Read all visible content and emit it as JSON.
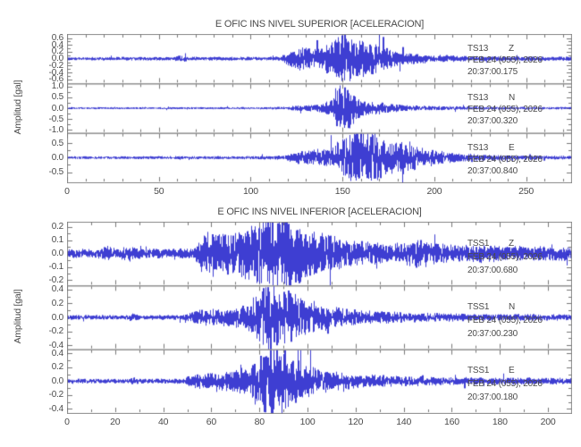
{
  "colors": {
    "background": "#ffffff",
    "trace": "#2323cc",
    "frame": "#8a8a8a",
    "tick": "#777777",
    "text": "#4a4a4a"
  },
  "chart_data": [
    {
      "type": "line",
      "title": "E OFIC INS NIVEL SUPERIOR [ACELERACION]",
      "ylabel": "Amplitud [gal]",
      "xlabel": "",
      "x_range": [
        0,
        275
      ],
      "xticks": [
        0,
        50,
        100,
        150,
        200,
        250
      ],
      "x_minor_step": 10,
      "grid": false,
      "traces": [
        {
          "station": "TS13",
          "component": "Z",
          "date": "FEB 24 (055), 2026",
          "time": "20:37:00.175",
          "yticks": [
            0.6,
            0.4,
            0.2,
            0.0,
            -0.2,
            -0.4,
            -0.6
          ],
          "ylim": [
            -0.72,
            0.72
          ],
          "dominant_freq_hz": 1.5,
          "envelope": [
            [
              0,
              0.04
            ],
            [
              40,
              0.045
            ],
            [
              58,
              0.045
            ],
            [
              62,
              0.1
            ],
            [
              66,
              0.05
            ],
            [
              90,
              0.045
            ],
            [
              116,
              0.05
            ],
            [
              122,
              0.2
            ],
            [
              127,
              0.3
            ],
            [
              133,
              0.25
            ],
            [
              139,
              0.3
            ],
            [
              145,
              0.42
            ],
            [
              149,
              0.6
            ],
            [
              152,
              0.65
            ],
            [
              156,
              0.45
            ],
            [
              161,
              0.47
            ],
            [
              166,
              0.4
            ],
            [
              172,
              0.3
            ],
            [
              178,
              0.22
            ],
            [
              186,
              0.15
            ],
            [
              196,
              0.11
            ],
            [
              210,
              0.08
            ],
            [
              230,
              0.06
            ],
            [
              255,
              0.055
            ],
            [
              275,
              0.05
            ]
          ]
        },
        {
          "station": "TS13",
          "component": "N",
          "date": "FEB 24 (055), 2026",
          "time": "20:37:00.320",
          "yticks": [
            1.0,
            0.5,
            0.0,
            -0.5,
            -1.0
          ],
          "ylim": [
            -1.15,
            1.15
          ],
          "dominant_freq_hz": 1.8,
          "envelope": [
            [
              0,
              0.04
            ],
            [
              60,
              0.04
            ],
            [
              100,
              0.045
            ],
            [
              112,
              0.05
            ],
            [
              118,
              0.06
            ],
            [
              124,
              0.1
            ],
            [
              132,
              0.12
            ],
            [
              138,
              0.16
            ],
            [
              143,
              0.3
            ],
            [
              147,
              0.7
            ],
            [
              150,
              1.05
            ],
            [
              154,
              0.85
            ],
            [
              158,
              0.45
            ],
            [
              163,
              0.28
            ],
            [
              168,
              0.26
            ],
            [
              175,
              0.18
            ],
            [
              183,
              0.13
            ],
            [
              192,
              0.1
            ],
            [
              205,
              0.08
            ],
            [
              225,
              0.06
            ],
            [
              275,
              0.05
            ]
          ]
        },
        {
          "station": "TS13",
          "component": "E",
          "date": "FEB 24 (055), 2026",
          "time": "20:37:00.840",
          "yticks": [
            0.5,
            0.0,
            -0.5
          ],
          "ylim": [
            -0.85,
            0.85
          ],
          "dominant_freq_hz": 1.2,
          "envelope": [
            [
              0,
              0.04
            ],
            [
              60,
              0.045
            ],
            [
              100,
              0.05
            ],
            [
              118,
              0.06
            ],
            [
              123,
              0.14
            ],
            [
              128,
              0.2
            ],
            [
              134,
              0.22
            ],
            [
              140,
              0.25
            ],
            [
              146,
              0.4
            ],
            [
              150,
              0.6
            ],
            [
              154,
              0.75
            ],
            [
              158,
              0.9
            ],
            [
              162,
              0.7
            ],
            [
              166,
              0.8
            ],
            [
              170,
              0.65
            ],
            [
              175,
              0.5
            ],
            [
              180,
              0.45
            ],
            [
              185,
              0.5
            ],
            [
              190,
              0.35
            ],
            [
              196,
              0.28
            ],
            [
              202,
              0.2
            ],
            [
              210,
              0.14
            ],
            [
              220,
              0.1
            ],
            [
              235,
              0.08
            ],
            [
              255,
              0.06
            ],
            [
              275,
              0.055
            ]
          ]
        }
      ]
    },
    {
      "type": "line",
      "title": "E OFIC INS NIVEL INFERIOR [ACELERACION]",
      "ylabel": "Amplitud [gal]",
      "xlabel": "",
      "x_range": [
        0,
        210
      ],
      "xticks": [
        0,
        20,
        40,
        60,
        80,
        100,
        120,
        140,
        160,
        180,
        200
      ],
      "x_minor_step": 10,
      "grid": false,
      "traces": [
        {
          "station": "TSS1",
          "component": "Z",
          "date": "FEB 24 (055), 2026",
          "time": "20:37:00.680",
          "yticks": [
            0.2,
            0.1,
            0.0,
            -0.1,
            -0.2
          ],
          "ylim": [
            -0.24,
            0.24
          ],
          "dominant_freq_hz": 2.2,
          "envelope": [
            [
              0,
              0.03
            ],
            [
              14,
              0.03
            ],
            [
              17,
              0.05
            ],
            [
              20,
              0.032
            ],
            [
              26,
              0.05
            ],
            [
              30,
              0.032
            ],
            [
              45,
              0.03
            ],
            [
              53,
              0.035
            ],
            [
              56,
              0.13
            ],
            [
              60,
              0.15
            ],
            [
              64,
              0.12
            ],
            [
              68,
              0.13
            ],
            [
              72,
              0.15
            ],
            [
              76,
              0.18
            ],
            [
              80,
              0.2
            ],
            [
              84,
              0.22
            ],
            [
              88,
              0.28
            ],
            [
              91,
              0.25
            ],
            [
              94,
              0.2
            ],
            [
              98,
              0.17
            ],
            [
              103,
              0.14
            ],
            [
              108,
              0.12
            ],
            [
              114,
              0.1
            ],
            [
              120,
              0.08
            ],
            [
              128,
              0.07
            ],
            [
              136,
              0.06
            ],
            [
              143,
              0.08
            ],
            [
              147,
              0.1
            ],
            [
              151,
              0.07
            ],
            [
              158,
              0.06
            ],
            [
              165,
              0.055
            ],
            [
              172,
              0.06
            ],
            [
              180,
              0.05
            ],
            [
              190,
              0.05
            ],
            [
              200,
              0.045
            ],
            [
              210,
              0.045
            ]
          ]
        },
        {
          "station": "TSS1",
          "component": "N",
          "date": "FEB 24 (055), 2026",
          "time": "20:37:00.230",
          "yticks": [
            0.4,
            0.2,
            0.0,
            -0.2,
            -0.4
          ],
          "ylim": [
            -0.46,
            0.46
          ],
          "dominant_freq_hz": 2.0,
          "envelope": [
            [
              0,
              0.028
            ],
            [
              24,
              0.03
            ],
            [
              27,
              0.05
            ],
            [
              30,
              0.03
            ],
            [
              48,
              0.03
            ],
            [
              53,
              0.08
            ],
            [
              58,
              0.1
            ],
            [
              64,
              0.11
            ],
            [
              70,
              0.13
            ],
            [
              75,
              0.16
            ],
            [
              78,
              0.22
            ],
            [
              81,
              0.35
            ],
            [
              84,
              0.45
            ],
            [
              87,
              0.4
            ],
            [
              90,
              0.33
            ],
            [
              94,
              0.3
            ],
            [
              98,
              0.24
            ],
            [
              102,
              0.18
            ],
            [
              107,
              0.14
            ],
            [
              112,
              0.12
            ],
            [
              118,
              0.1
            ],
            [
              126,
              0.08
            ],
            [
              135,
              0.07
            ],
            [
              145,
              0.06
            ],
            [
              158,
              0.05
            ],
            [
              172,
              0.045
            ],
            [
              190,
              0.04
            ],
            [
              210,
              0.04
            ]
          ]
        },
        {
          "station": "TSS1",
          "component": "E",
          "date": "FEB 24 (055), 2026",
          "time": "20:37:00.180",
          "yticks": [
            0.4,
            0.2,
            0.0,
            -0.2,
            -0.4
          ],
          "ylim": [
            -0.46,
            0.46
          ],
          "dominant_freq_hz": 2.1,
          "envelope": [
            [
              0,
              0.028
            ],
            [
              24,
              0.03
            ],
            [
              27,
              0.05
            ],
            [
              30,
              0.03
            ],
            [
              48,
              0.03
            ],
            [
              53,
              0.09
            ],
            [
              58,
              0.11
            ],
            [
              64,
              0.12
            ],
            [
              70,
              0.14
            ],
            [
              76,
              0.18
            ],
            [
              80,
              0.28
            ],
            [
              84,
              0.5
            ],
            [
              88,
              0.44
            ],
            [
              92,
              0.36
            ],
            [
              96,
              0.27
            ],
            [
              100,
              0.2
            ],
            [
              105,
              0.15
            ],
            [
              110,
              0.12
            ],
            [
              116,
              0.1
            ],
            [
              124,
              0.08
            ],
            [
              134,
              0.07
            ],
            [
              146,
              0.06
            ],
            [
              160,
              0.05
            ],
            [
              175,
              0.045
            ],
            [
              192,
              0.04
            ],
            [
              210,
              0.04
            ]
          ]
        }
      ]
    }
  ]
}
